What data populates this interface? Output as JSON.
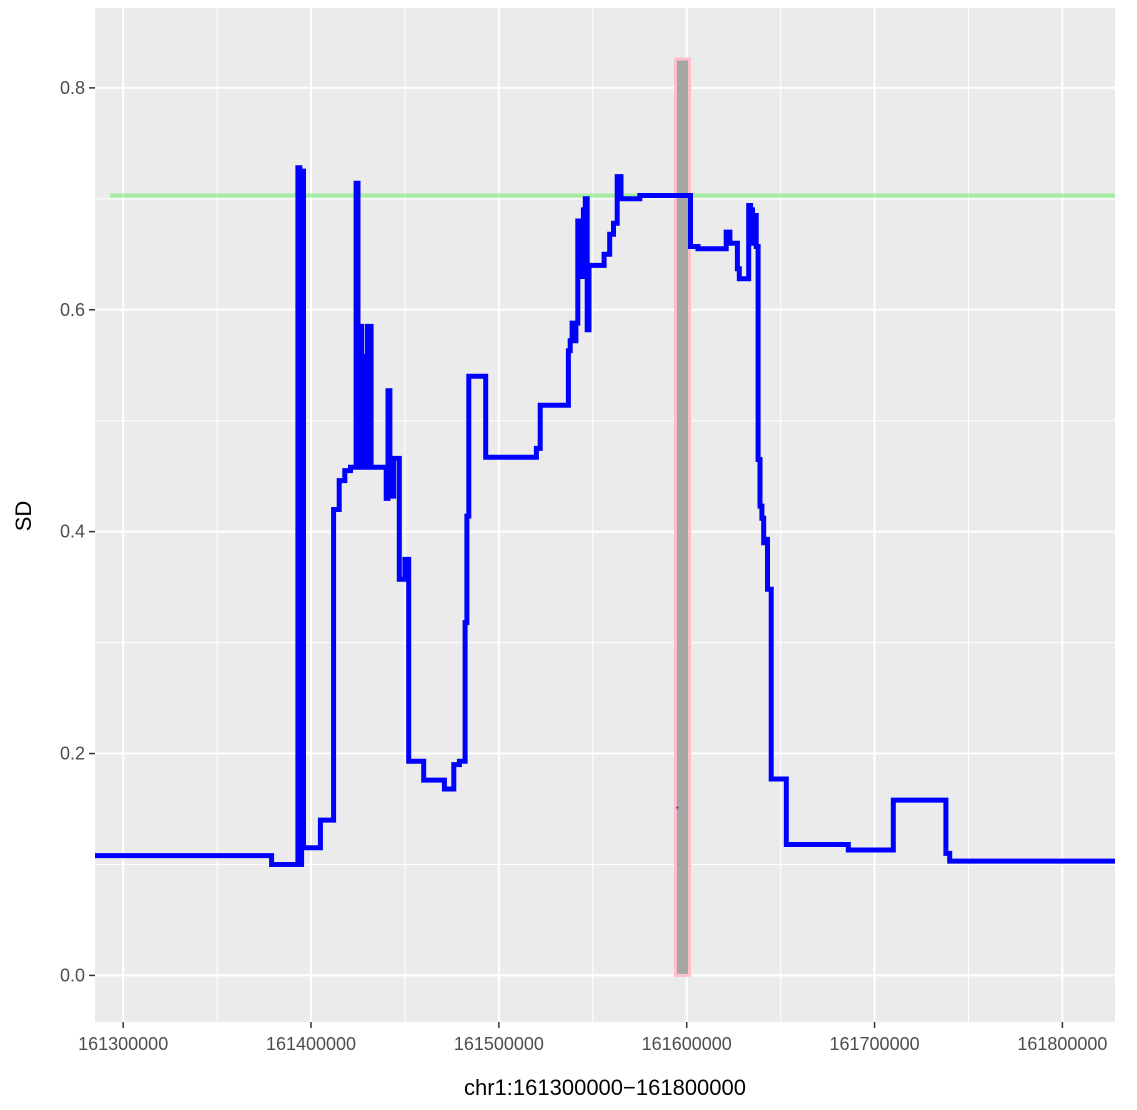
{
  "chart_data": {
    "type": "line",
    "title": "",
    "xlabel": "chr1:161300000−161800000",
    "ylabel": "SD",
    "xlim": [
      161285000,
      161828000
    ],
    "ylim": [
      -0.042,
      0.872
    ],
    "x_ticks": [
      161300000,
      161400000,
      161500000,
      161600000,
      161700000,
      161800000
    ],
    "x_minor_ticks": [
      161350000,
      161450000,
      161550000,
      161650000,
      161750000
    ],
    "y_ticks": [
      0.0,
      0.2,
      0.4,
      0.6,
      0.8
    ],
    "y_minor_ticks": [
      0.1,
      0.3,
      0.5,
      0.7
    ],
    "y_tick_labels": [
      "0.0",
      "0.2",
      "0.4",
      "0.6",
      "0.8"
    ],
    "grid": true,
    "background": "#ebebeb",
    "grid_color": "#ffffff",
    "series": [
      {
        "name": "",
        "color": "#0000ff",
        "step": "hv",
        "x": [
          161285000,
          161377000,
          161379000,
          161392000,
          161393000,
          161394000,
          161395000,
          161396000,
          161400000,
          161405000,
          161410000,
          161412000,
          161415000,
          161418000,
          161421000,
          161423000,
          161424000,
          161425000,
          161426000,
          161427000,
          161428000,
          161429000,
          161430000,
          161432000,
          161437000,
          161440000,
          161441000,
          161442000,
          161444000,
          161447000,
          161449000,
          161450000,
          161452000,
          161455000,
          161460000,
          161467000,
          161471000,
          161476000,
          161479000,
          161481000,
          161482000,
          161483000,
          161484000,
          161485000,
          161486000,
          161493000,
          161505000,
          161520000,
          161522000,
          161535000,
          161537000,
          161538000,
          161539000,
          161540000,
          161541000,
          161542000,
          161543000,
          161544000,
          161545000,
          161546000,
          161547000,
          161548000,
          161549000,
          161551000,
          161556000,
          161559000,
          161561000,
          161563000,
          161565000,
          161567000,
          161575000,
          161590000,
          161600000,
          161602000,
          161606000,
          161621000,
          161623000,
          161625000,
          161627000,
          161628000,
          161632000,
          161633000,
          161634000,
          161635000,
          161636000,
          161637000,
          161638000,
          161639000,
          161640000,
          161641000,
          161642000,
          161643000,
          161645000,
          161648000,
          161653000,
          161683000,
          161686000,
          161702000,
          161710000,
          161718000,
          161735000,
          161738000,
          161740000,
          161760000,
          161780000,
          161800000,
          161828000
        ],
        "y": [
          0.108,
          0.108,
          0.1,
          0.1,
          0.728,
          0.1,
          0.725,
          0.115,
          0.115,
          0.14,
          0.14,
          0.42,
          0.446,
          0.455,
          0.458,
          0.458,
          0.714,
          0.458,
          0.585,
          0.458,
          0.558,
          0.458,
          0.585,
          0.458,
          0.458,
          0.43,
          0.527,
          0.432,
          0.466,
          0.357,
          0.357,
          0.375,
          0.193,
          0.193,
          0.176,
          0.176,
          0.168,
          0.19,
          0.193,
          0.193,
          0.318,
          0.414,
          0.54,
          0.54,
          0.54,
          0.467,
          0.467,
          0.475,
          0.514,
          0.514,
          0.563,
          0.572,
          0.588,
          0.572,
          0.588,
          0.68,
          0.678,
          0.63,
          0.69,
          0.7,
          0.582,
          0.64,
          0.64,
          0.64,
          0.65,
          0.668,
          0.678,
          0.72,
          0.7,
          0.7,
          0.703,
          0.703,
          0.703,
          0.657,
          0.655,
          0.67,
          0.66,
          0.66,
          0.637,
          0.628,
          0.628,
          0.694,
          0.69,
          0.66,
          0.685,
          0.657,
          0.465,
          0.423,
          0.412,
          0.39,
          0.393,
          0.348,
          0.177,
          0.177,
          0.118,
          0.118,
          0.113,
          0.113,
          0.158,
          0.158,
          0.158,
          0.11,
          0.103,
          0.103,
          0.103,
          0.103,
          0.103
        ]
      }
    ],
    "hline": {
      "y": 0.703,
      "color": "#90ee90"
    },
    "highlight": {
      "x_start": 161594000,
      "x_end": 161601500,
      "y_start": 0.0,
      "y_end": 0.826,
      "fill": "#a6a6a6",
      "stroke": "#ffc0cb"
    },
    "marker": {
      "x": 161595000,
      "y": 0.15,
      "label": "*"
    }
  }
}
